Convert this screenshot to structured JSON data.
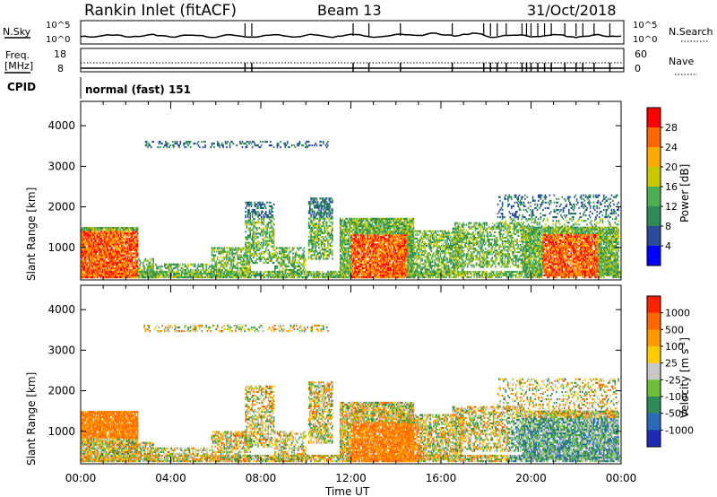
{
  "header": {
    "station": "Rankin Inlet (fitACF)",
    "beam": "Beam 13",
    "date": "31/Oct/2018"
  },
  "strip": {
    "nsky_label": "N.Sky",
    "nsearch_label": "N.Search",
    "nsky_ticks": [
      "10^5",
      "10^0"
    ],
    "nsearch_ticks": [
      "10^5",
      "10^0"
    ],
    "freq_label_1": "Freq.",
    "freq_label_2": "[MHz]",
    "freq_ticks": [
      "18",
      "8"
    ],
    "nave_label": "Nave",
    "nave_ticks": [
      "60",
      "0"
    ],
    "cpid_label": "CPID",
    "cpid_value": "normal (fast) 151"
  },
  "colors": {
    "power_scale": [
      "#0000ff",
      "#2a4a9a",
      "#2e8b57",
      "#4caf50",
      "#c8c800",
      "#ffaa00",
      "#ff6600",
      "#ff0000"
    ],
    "velocity_scale": [
      "#1e2ab4",
      "#2a6ab8",
      "#2e8b57",
      "#6cbf3a",
      "#c8c8c8",
      "#ffcc00",
      "#ff9900",
      "#ff6600",
      "#ff2200"
    ]
  },
  "chart_data": [
    {
      "type": "heatmap",
      "name": "power",
      "ylabel": "Slant Range [km]",
      "yticks": [
        "4000",
        "3000",
        "2000",
        "1000"
      ],
      "ylim": [
        200,
        4600
      ],
      "colorbar_label": "Power [dB]",
      "colorbar_ticks": [
        "28",
        "24",
        "20",
        "16",
        "12",
        "8",
        "4"
      ],
      "clim": [
        0,
        32
      ]
    },
    {
      "type": "heatmap",
      "name": "velocity",
      "xlabel": "Time UT",
      "xticks": [
        "00:00",
        "04:00",
        "08:00",
        "12:00",
        "16:00",
        "20:00",
        "00:00"
      ],
      "xlim": [
        0,
        24
      ],
      "ylabel": "Slant Range [km]",
      "yticks": [
        "4000",
        "3000",
        "2000",
        "1000"
      ],
      "ylim": [
        200,
        4600
      ],
      "colorbar_label": "Velocity [m s^-1]",
      "colorbar_ticks": [
        "1000",
        "500",
        "100",
        "25",
        "-25",
        "-100",
        "-500",
        "-1000"
      ]
    }
  ]
}
